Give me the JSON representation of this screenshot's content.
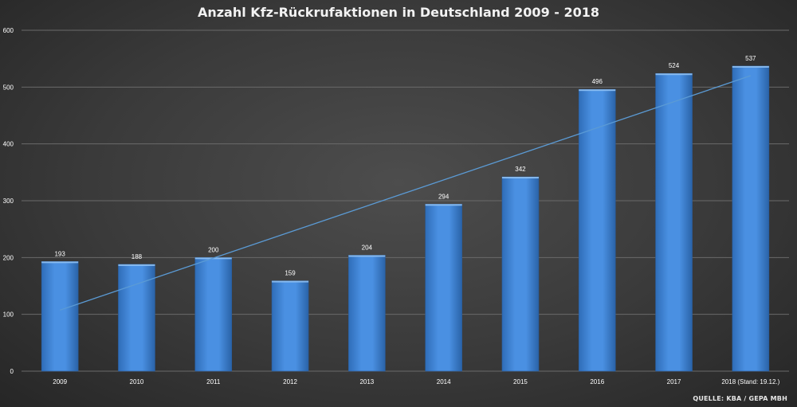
{
  "chart_data": {
    "type": "bar",
    "title": "Anzahl Kfz-Rückrufaktionen in Deutschland 2009 - 2018",
    "categories": [
      "2009",
      "2010",
      "2011",
      "2012",
      "2013",
      "2014",
      "2015",
      "2016",
      "2017",
      "2018 (Stand: 19.12.)"
    ],
    "values": [
      193,
      188,
      200,
      159,
      204,
      294,
      342,
      496,
      524,
      537
    ],
    "data_labels": [
      "193",
      "188",
      "200",
      "159",
      "204",
      "294",
      "342",
      "496",
      "524",
      "537"
    ],
    "yticks": [
      "0",
      "100",
      "200",
      "300",
      "400",
      "500",
      "600"
    ],
    "ylim": [
      0,
      600
    ],
    "xlabel": "",
    "ylabel": "",
    "trendline": "linear",
    "grid": true,
    "legend": "none",
    "colors": {
      "bar": "#3f86d6",
      "trend": "#5b9bd5",
      "grid": "#6a6a6a",
      "text": "#ffffff"
    }
  },
  "source": "QUELLE: KBA / GEPA MBH"
}
